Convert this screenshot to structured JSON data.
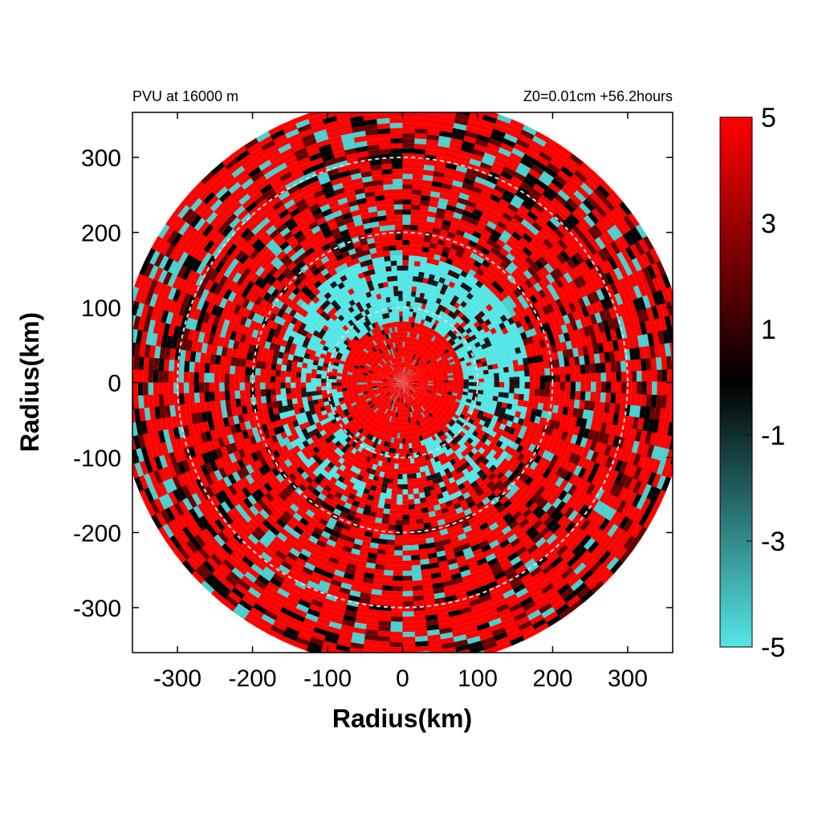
{
  "chart_data": {
    "type": "heatmap",
    "title_left": "PVU at 16000 m",
    "title_right": "Z0=0.01cm  +56.2hours",
    "xlabel": "Radius(km)",
    "ylabel": "Radius(km)",
    "xlim": [
      -360,
      360
    ],
    "ylim": [
      -360,
      360
    ],
    "xticks": [
      -300,
      -200,
      -100,
      0,
      100,
      200,
      300
    ],
    "yticks": [
      -300,
      -200,
      -100,
      0,
      100,
      200,
      300
    ],
    "data_radius_km": 380,
    "reference_circles_km": [
      100,
      200,
      300
    ],
    "colorbar": {
      "min": -5,
      "max": 5,
      "tick_labels": [
        "5",
        "3",
        "1",
        "-1",
        "-3",
        "-5"
      ],
      "tick_values": [
        5,
        3,
        1,
        -1,
        -3,
        -5
      ],
      "colors": {
        "low": "#55e6e6",
        "mid": "#000000",
        "high": "#ff0000"
      }
    },
    "field_description_values": {
      "core_radius_km": 80,
      "core_value": 5,
      "negative_ring_radius_km": [
        60,
        170
      ],
      "negative_ring_center_angle_deg": 70,
      "outer_value": 4
    }
  }
}
